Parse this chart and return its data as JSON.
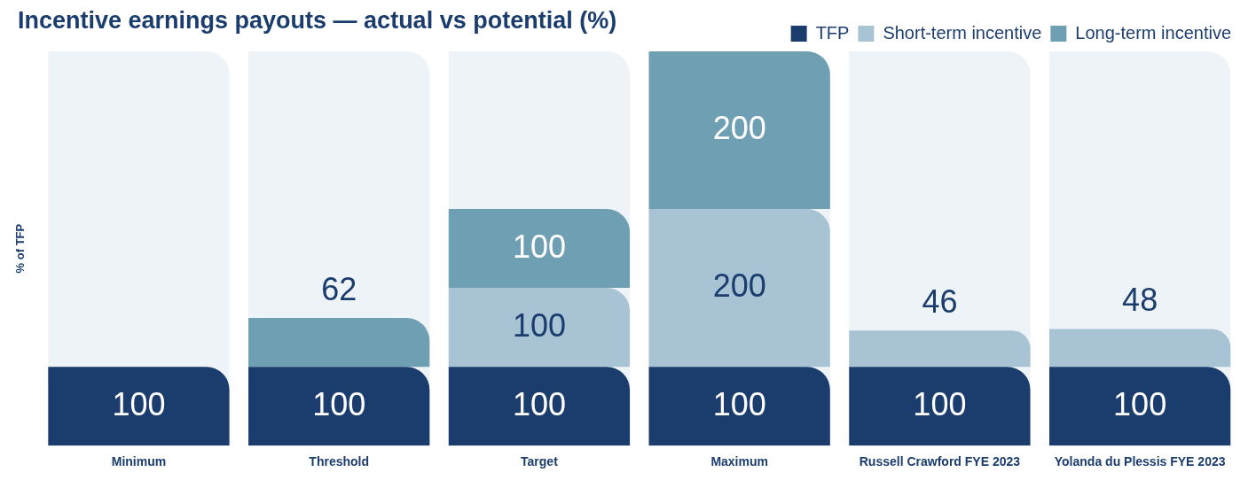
{
  "chart_data": {
    "type": "bar",
    "title": "Incentive earnings payouts — actual vs potential (%)",
    "ylabel": "% of TFP",
    "categories": [
      "Minimum",
      "Threshold",
      "Target",
      "Maximum",
      "Russell Crawford FYE 2023",
      "Yolanda du Plessis FYE 2023"
    ],
    "series": [
      {
        "name": "TFP",
        "color": "#1b3d6e",
        "values": [
          100,
          100,
          100,
          100,
          100,
          100
        ]
      },
      {
        "name": "Short-term incentive",
        "color": "#a7c3d4",
        "values": [
          null,
          null,
          100,
          200,
          46,
          48
        ]
      },
      {
        "name": "Long-term incentive",
        "color": "#6f9fb3",
        "values": [
          null,
          62,
          100,
          200,
          null,
          null
        ]
      }
    ],
    "stacked": true,
    "ylim": [
      0,
      500
    ],
    "tick_labels": "x",
    "data_labels": true,
    "grid": false,
    "legend": "top right"
  }
}
